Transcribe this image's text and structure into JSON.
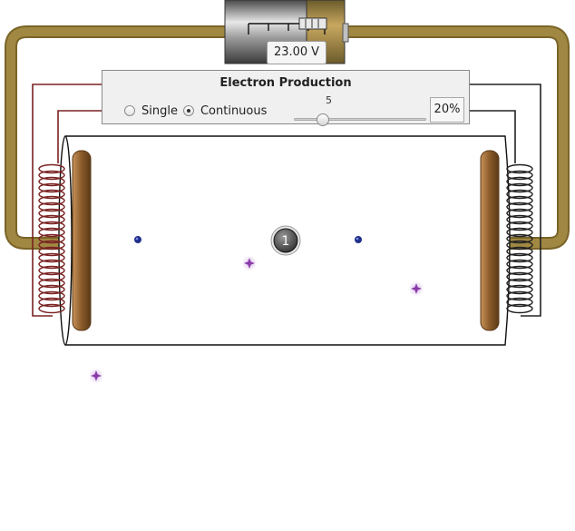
{
  "battery": {
    "voltage_value": "23.00",
    "voltage_unit": "V"
  },
  "electron_production": {
    "title": "Electron Production",
    "modes": [
      {
        "label": "Single",
        "selected": false
      },
      {
        "label": "Continuous",
        "selected": true
      }
    ],
    "slider_value": "5",
    "slider_level_fraction": 0.22,
    "percent_label": "20%"
  },
  "atom_counter": "1",
  "colors": {
    "wire": "#a08842",
    "coil_left": "#7a2222",
    "coil_right": "#222222",
    "electrode": "#8a5a28",
    "electron": "#1f2f8a",
    "photon": "#8a3aa8"
  }
}
